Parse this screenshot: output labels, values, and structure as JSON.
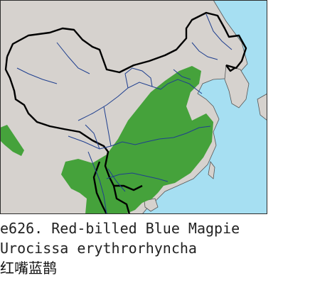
{
  "map": {
    "colors": {
      "sea": "#a6dff2",
      "land": "#d6d2ce",
      "range": "#45a23b",
      "border": "#000000",
      "river": "#1f3f8f",
      "frame": "#2d2d2d"
    }
  },
  "caption": {
    "line1": "e626. Red-billed Blue Magpie",
    "line2": "Urocissa erythrorhyncha",
    "line3": "红嘴蓝鹊"
  }
}
